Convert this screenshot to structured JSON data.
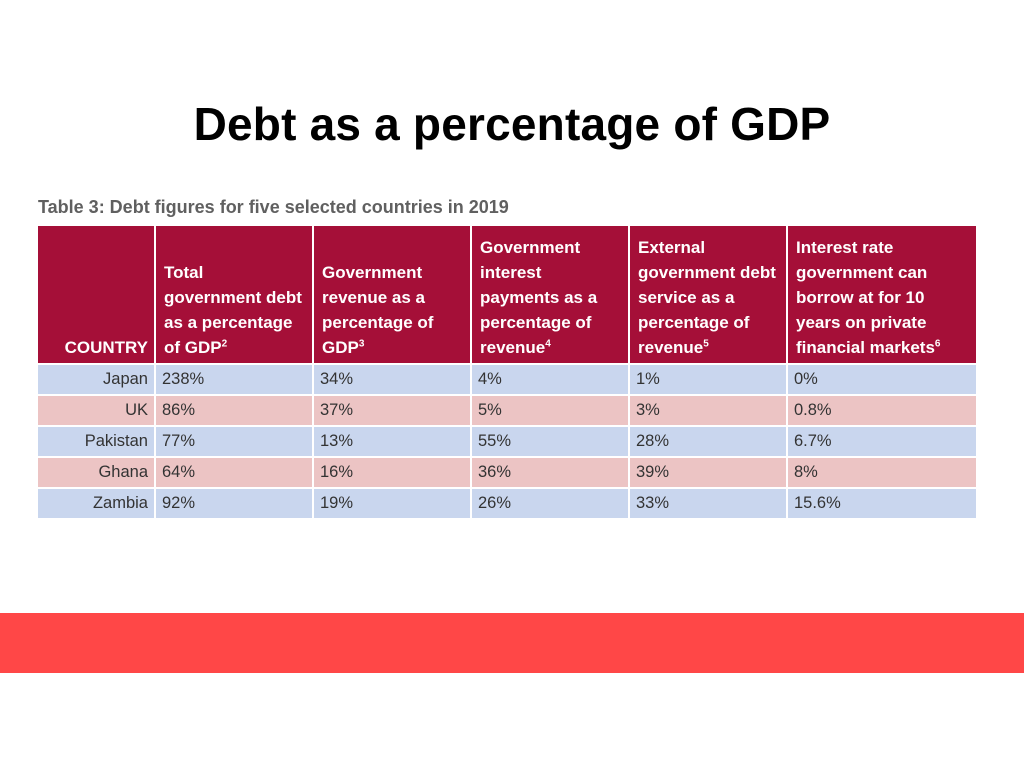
{
  "slide": {
    "title": "Debt as a percentage of GDP"
  },
  "table": {
    "caption": "Table 3: Debt figures for five selected countries in 2019",
    "columns": [
      {
        "label": "COUNTRY",
        "note": ""
      },
      {
        "label": "Total government debt as a percentage of GDP",
        "note": "2"
      },
      {
        "label": "Government revenue as a percentage of GDP",
        "note": "3"
      },
      {
        "label": "Government interest payments as a percentage of revenue",
        "note": "4"
      },
      {
        "label": "External government debt service as a percentage of revenue",
        "note": "5"
      },
      {
        "label": "Interest rate government can borrow at for 10 years on private financial markets",
        "note": "6"
      }
    ],
    "rows": [
      [
        "Japan",
        "238%",
        "34%",
        "4%",
        "1%",
        "0%"
      ],
      [
        "UK",
        "86%",
        "37%",
        "5%",
        "3%",
        "0.8%"
      ],
      [
        "Pakistan",
        "77%",
        "13%",
        "55%",
        "28%",
        "6.7%"
      ],
      [
        "Ghana",
        "64%",
        "16%",
        "36%",
        "39%",
        "8%"
      ],
      [
        "Zambia",
        "92%",
        "19%",
        "26%",
        "33%",
        "15.6%"
      ]
    ]
  },
  "colors": {
    "header_background": "#a50f38",
    "row_blue": "#c9d6ee",
    "row_pink": "#ecc4c4",
    "band": "#ff4747"
  }
}
